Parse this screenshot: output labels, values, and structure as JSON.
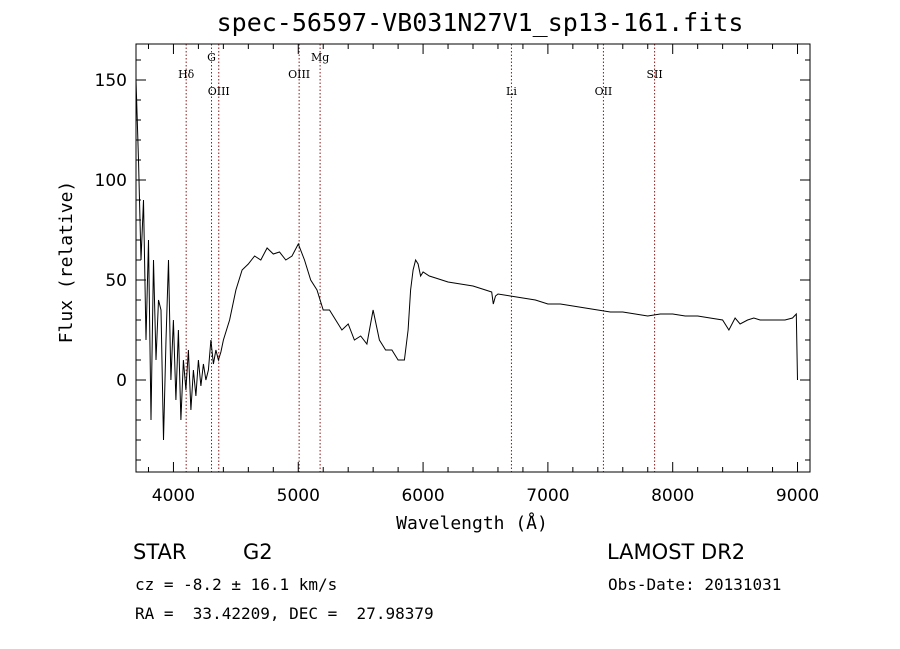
{
  "header": {
    "title": "spec-56597-VB031N27V1_sp13-161.fits"
  },
  "footer": {
    "object_class": "STAR",
    "subclass": "G2",
    "survey": "LAMOST DR2",
    "redshift": "cz = -8.2 ± 16.1 km/s",
    "obs_date": "Obs-Date: 20131031",
    "coords": "RA =  33.42209, DEC =  27.98379"
  },
  "chart_data": {
    "type": "line",
    "xlabel": "Wavelength (Å)",
    "ylabel": "Flux (relative)",
    "xlim": [
      3700,
      9100
    ],
    "ylim": [
      -46,
      168
    ],
    "xticks": [
      4000,
      5000,
      6000,
      7000,
      8000,
      9000
    ],
    "yticks": [
      0,
      50,
      100,
      150
    ],
    "line_color": "#8b1a1a",
    "spectral_lines": [
      {
        "label": "Hδ",
        "x": 4102,
        "label_row": "low"
      },
      {
        "label": "G",
        "x": 4305,
        "label_row": "high"
      },
      {
        "label": "OIII",
        "x": 4363,
        "label_row": "bottom"
      },
      {
        "label": "OIII",
        "x": 5007,
        "label_row": "low"
      },
      {
        "label": "Mg",
        "x": 5175,
        "label_row": "high"
      },
      {
        "label": "Li",
        "x": 6708,
        "label_row": "bottom"
      },
      {
        "label": "OII",
        "x": 7445,
        "label_row": "bottom"
      },
      {
        "label": "SII",
        "x": 7855,
        "label_row": "low"
      }
    ],
    "series": [
      {
        "x": [
          3700,
          3720,
          3740,
          3760,
          3780,
          3800,
          3820,
          3840,
          3860,
          3880,
          3900,
          3920,
          3940,
          3960,
          3980,
          4000,
          4020,
          4040,
          4060,
          4080,
          4100,
          4120,
          4140,
          4160,
          4180,
          4200,
          4220,
          4240,
          4260,
          4280,
          4300,
          4320,
          4340,
          4360,
          4380,
          4400,
          4450,
          4500,
          4550,
          4600,
          4650,
          4700,
          4750,
          4800,
          4850,
          4900,
          4950,
          5000,
          5050,
          5100,
          5150,
          5200,
          5250,
          5300,
          5350,
          5400,
          5450,
          5500,
          5550,
          5600,
          5650,
          5700,
          5750,
          5800,
          5850,
          5880,
          5900,
          5920,
          5940,
          5960,
          5980,
          6000,
          6050,
          6100,
          6150,
          6200,
          6300,
          6400,
          6500,
          6550,
          6563,
          6580,
          6600,
          6700,
          6800,
          6900,
          7000,
          7100,
          7200,
          7300,
          7400,
          7500,
          7600,
          7700,
          7800,
          7900,
          8000,
          8100,
          8200,
          8300,
          8400,
          8450,
          8500,
          8540,
          8600,
          8650,
          8700,
          8800,
          8900,
          8960,
          8990,
          9000
        ],
        "y": [
          150,
          110,
          60,
          90,
          20,
          70,
          -20,
          60,
          10,
          40,
          35,
          -30,
          20,
          60,
          0,
          30,
          -10,
          25,
          -20,
          10,
          -5,
          15,
          -15,
          5,
          -8,
          10,
          -3,
          8,
          0,
          5,
          20,
          8,
          15,
          10,
          14,
          20,
          30,
          45,
          55,
          58,
          62,
          60,
          66,
          63,
          64,
          60,
          62,
          68,
          60,
          50,
          45,
          35,
          35,
          30,
          25,
          28,
          20,
          22,
          18,
          35,
          20,
          15,
          15,
          10,
          10,
          25,
          45,
          55,
          60,
          58,
          52,
          54,
          52,
          51,
          50,
          49,
          48,
          47,
          45,
          44,
          38,
          42,
          43,
          42,
          41,
          40,
          38,
          38,
          37,
          36,
          35,
          34,
          34,
          33,
          32,
          33,
          33,
          32,
          32,
          31,
          30,
          25,
          31,
          28,
          30,
          31,
          30,
          30,
          30,
          31,
          33,
          0
        ]
      }
    ]
  }
}
